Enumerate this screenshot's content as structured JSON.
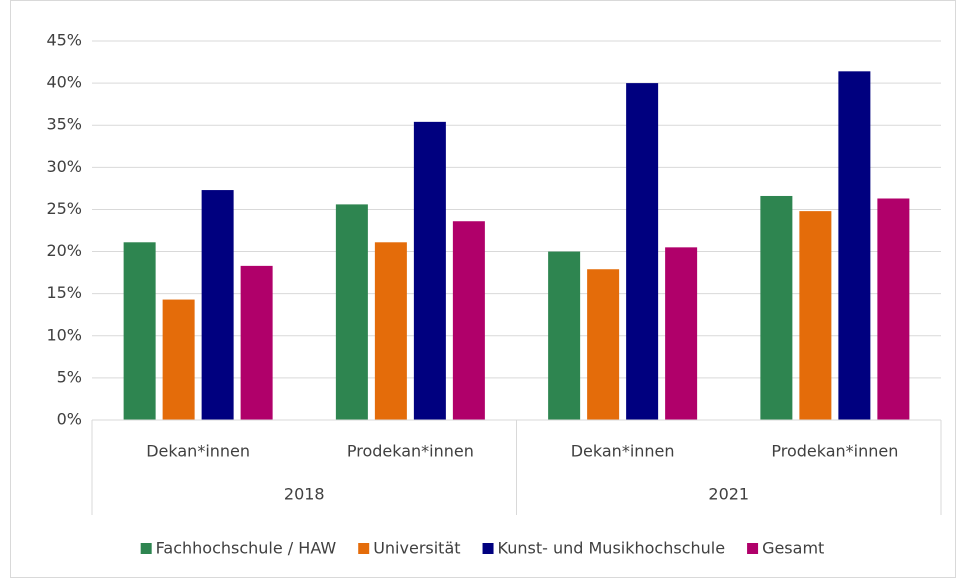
{
  "chart_data": {
    "type": "bar",
    "categories": [
      "Dekan*innen",
      "Prodekan*innen",
      "Dekan*innen",
      "Prodekan*innen"
    ],
    "groups": [
      "2018",
      "2021"
    ],
    "series": [
      {
        "name": "Fachhochschule / HAW",
        "color": "#2e8550",
        "values": [
          21.1,
          25.6,
          20.0,
          26.6
        ]
      },
      {
        "name": "Universität",
        "color": "#e46c0a",
        "values": [
          14.3,
          21.1,
          17.9,
          24.8
        ]
      },
      {
        "name": "Kunst- und Musikhochschule",
        "color": "#00007f",
        "values": [
          27.3,
          35.4,
          40.0,
          41.4
        ]
      },
      {
        "name": "Gesamt",
        "color": "#b0006a",
        "values": [
          18.3,
          23.6,
          20.5,
          26.3
        ]
      }
    ],
    "ylim": [
      0,
      45
    ],
    "yticks": [
      {
        "value": 0,
        "label": "0%"
      },
      {
        "value": 5,
        "label": "5%"
      },
      {
        "value": 10,
        "label": "10%"
      },
      {
        "value": 15,
        "label": "15%"
      },
      {
        "value": 20,
        "label": "20%"
      },
      {
        "value": 25,
        "label": "25%"
      },
      {
        "value": 30,
        "label": "30%"
      },
      {
        "value": 35,
        "label": "35%"
      },
      {
        "value": 40,
        "label": "40%"
      },
      {
        "value": 45,
        "label": "45%"
      }
    ],
    "grid": true,
    "legend": "bottom"
  }
}
